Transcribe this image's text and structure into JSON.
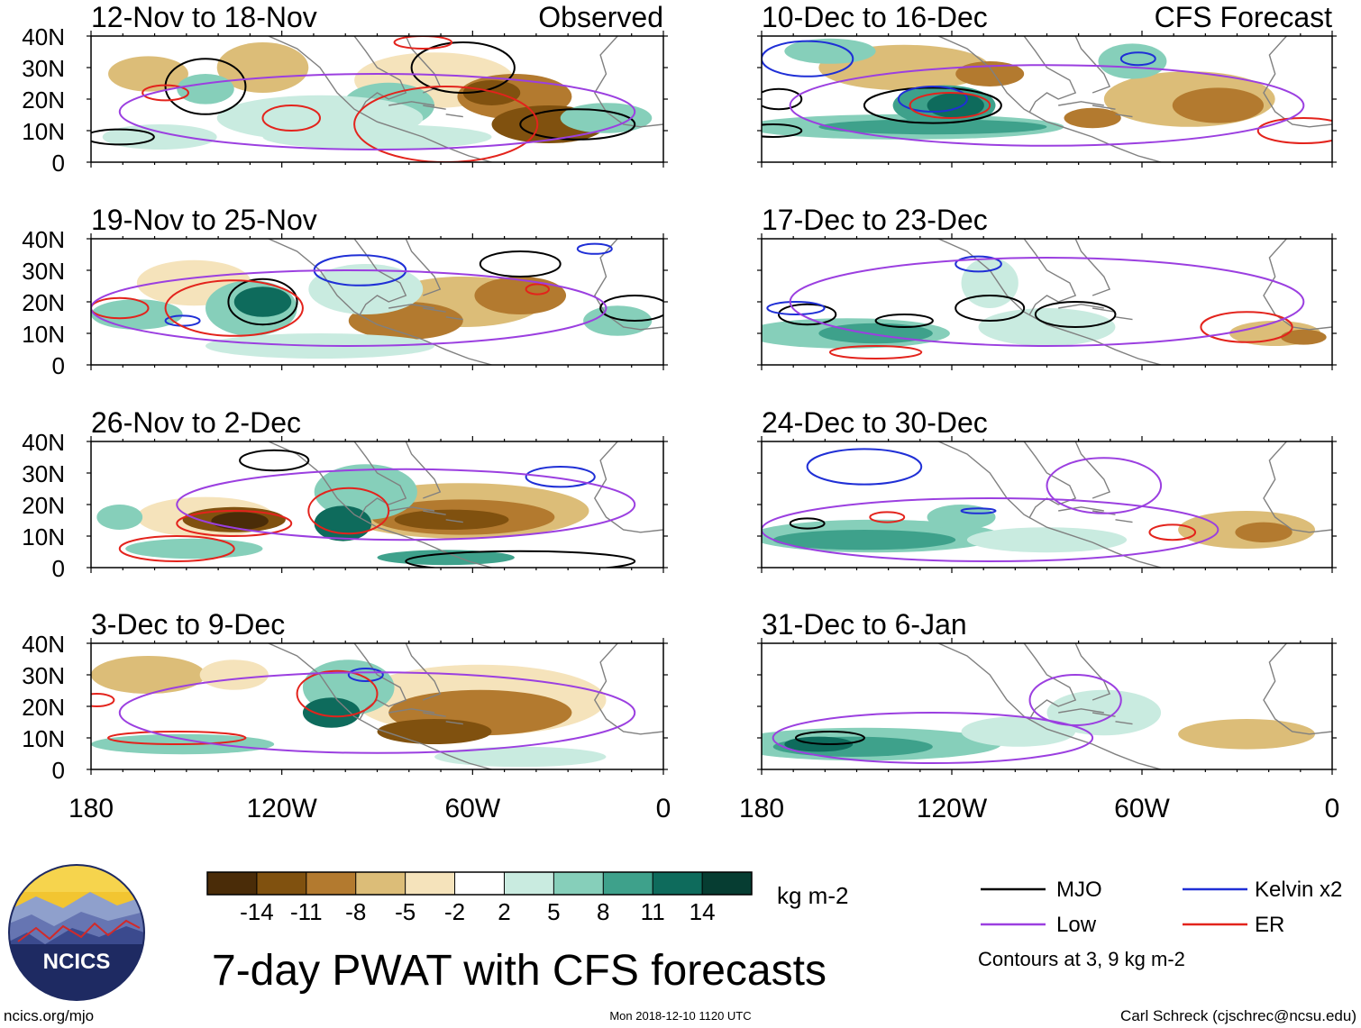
{
  "title": "7-day PWAT with CFS forecasts",
  "units": "kg m-2",
  "left_column_header": "Observed",
  "right_column_header": "CFS Forecast",
  "lat_labels": [
    "40N",
    "30N",
    "20N",
    "10N",
    "0"
  ],
  "lon_labels": [
    "180",
    "120W",
    "60W",
    "0"
  ],
  "panels": [
    {
      "label": "12-Nov to 18-Nov"
    },
    {
      "label": "19-Nov to 25-Nov"
    },
    {
      "label": "26-Nov to 2-Dec"
    },
    {
      "label": "3-Dec to 9-Dec"
    },
    {
      "label": "10-Dec to 16-Dec"
    },
    {
      "label": "17-Dec to 23-Dec"
    },
    {
      "label": "24-Dec to 30-Dec"
    },
    {
      "label": "31-Dec to 6-Jan"
    }
  ],
  "colorbar": {
    "colors": [
      "#4a2c08",
      "#80510f",
      "#b37a2f",
      "#dcbd78",
      "#f5e3bb",
      "#ffffff",
      "#c9ebe0",
      "#86cfba",
      "#3ea18b",
      "#0e6b5c",
      "#063d32"
    ],
    "tick_labels": [
      "-14",
      "-11",
      "-8",
      "-5",
      "-2",
      "2",
      "5",
      "8",
      "11",
      "14"
    ]
  },
  "legend": {
    "items": [
      {
        "label": "MJO",
        "color": "#000000"
      },
      {
        "label": "Kelvin x2",
        "color": "#1f2fd6"
      },
      {
        "label": "Low",
        "color": "#9b3fe0"
      },
      {
        "label": "ER",
        "color": "#e3231c"
      }
    ],
    "note": "Contours at 3, 9 kg m-2"
  },
  "logo": {
    "text": "NCICS"
  },
  "footer": {
    "left": "ncics.org/mjo",
    "center": "Mon 2018-12-10 1120 UTC",
    "right": "Carl Schreck (cjschrec@ncsu.edu)"
  }
}
